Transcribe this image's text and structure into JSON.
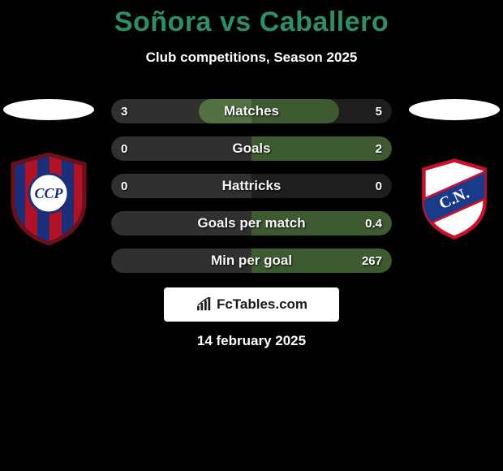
{
  "title_color": "#2d8f66",
  "player_left": "Soñora",
  "vs_label": "vs",
  "player_right": "Caballero",
  "subtitle": "Club competitions, Season 2025",
  "date": "14 february 2025",
  "brand": "FcTables.com",
  "bars": {
    "bg_left_color": "#303030",
    "bg_right_color": "#1e1e1e",
    "fill_left_color": "#527042",
    "fill_right_color": "#3d5a31",
    "rows": [
      {
        "label": "Matches",
        "left_val": "3",
        "right_val": "5",
        "left_pct": 37.5,
        "right_pct": 62.5
      },
      {
        "label": "Goals",
        "left_val": "0",
        "right_val": "2",
        "left_pct": 0,
        "right_pct": 100
      },
      {
        "label": "Hattricks",
        "left_val": "0",
        "right_val": "0",
        "left_pct": 0,
        "right_pct": 0
      },
      {
        "label": "Goals per match",
        "left_val": "",
        "right_val": "0.4",
        "left_pct": 0,
        "right_pct": 100
      },
      {
        "label": "Min per goal",
        "left_val": "",
        "right_val": "267",
        "left_pct": 0,
        "right_pct": 100
      }
    ]
  },
  "crest_left": {
    "stripe_a": "#b11226",
    "stripe_b": "#1a2e7a",
    "border": "#6b0f1a",
    "disc_fill": "#ffffff",
    "disc_border": "#1a2e7a",
    "monogram": "CCP",
    "monogram_color": "#1a2e7a"
  },
  "crest_right": {
    "field": "#ffffff",
    "border": "#c8102e",
    "band": "#1a3a8a",
    "band_border": "#c8102e",
    "text": "C.N.",
    "text_color": "#ffffff"
  }
}
